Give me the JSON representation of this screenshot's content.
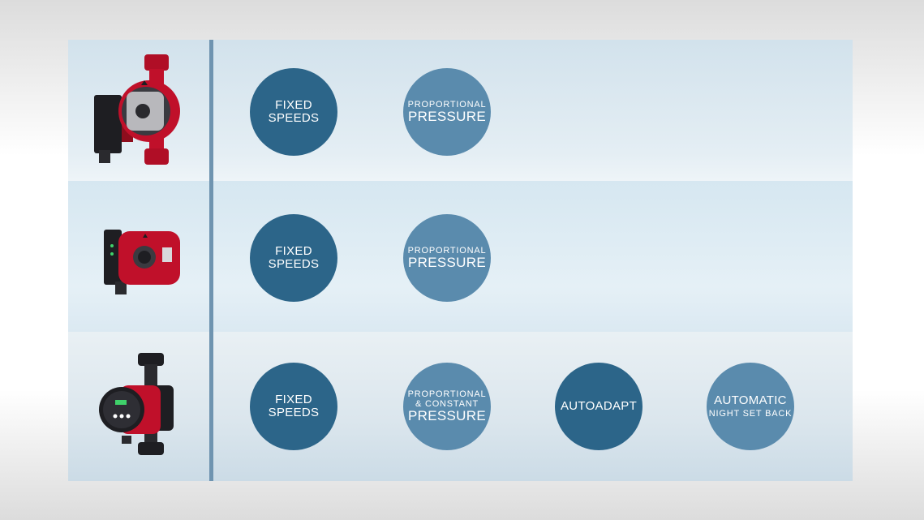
{
  "rows": [
    {
      "circles": [
        {
          "line1": "FIXED SPEEDS"
        },
        {
          "line1": "PROPORTIONAL",
          "line2": "PRESSURE"
        }
      ]
    },
    {
      "circles": [
        {
          "line1": "FIXED SPEEDS"
        },
        {
          "line1": "PROPORTIONAL",
          "line2": "PRESSURE"
        }
      ]
    },
    {
      "circles": [
        {
          "line1": "FIXED SPEEDS"
        },
        {
          "line1": "PROPORTIONAL",
          "line2": "& CONSTANT",
          "line3": "PRESSURE"
        },
        {
          "line1": "AUTOADAPT"
        },
        {
          "line1": "AUTOMATIC",
          "line2": "NIGHT SET BACK"
        }
      ]
    }
  ],
  "colors": {
    "dark_circle": "#2c6589",
    "light_circle": "#5a8bad",
    "divider": "#6f94b0",
    "pump_red": "#c0102a"
  },
  "icons": [
    "pump-illustration-1",
    "pump-illustration-2",
    "pump-illustration-3"
  ]
}
